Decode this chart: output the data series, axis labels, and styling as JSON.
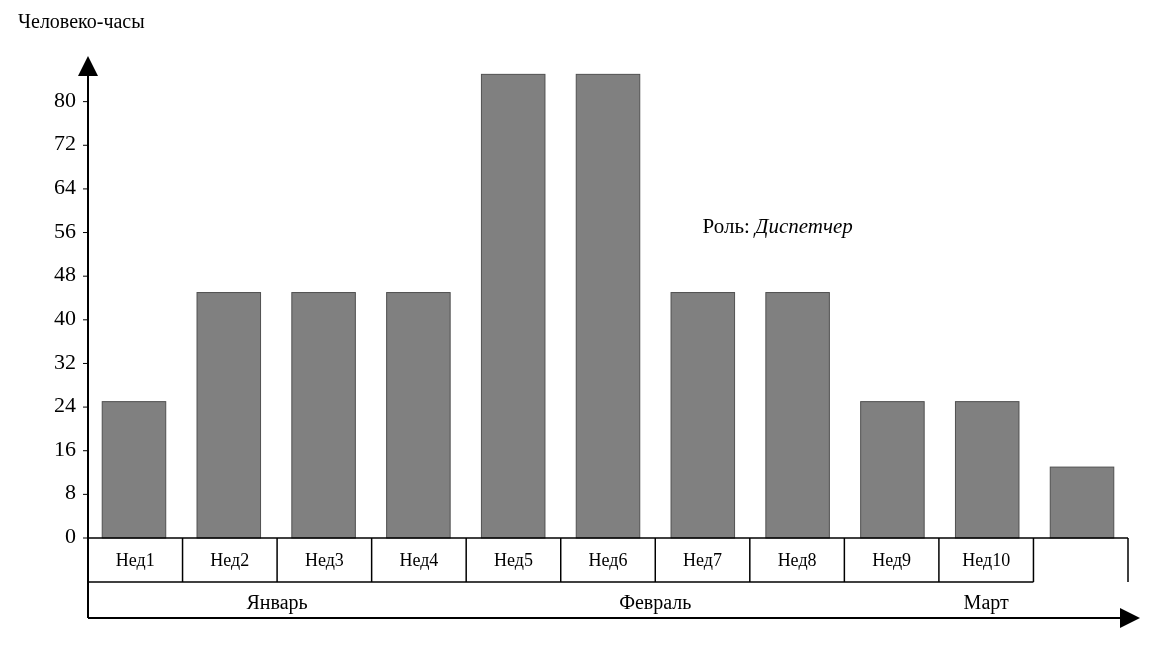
{
  "chart_data": {
    "type": "bar",
    "ylabel": "Человеко-часы",
    "categories": [
      "Нед1",
      "Нед2",
      "Нед3",
      "Нед4",
      "Нед5",
      "Нед6",
      "Нед7",
      "Нед8",
      "Нед9",
      "Нед10",
      null
    ],
    "values": [
      25,
      45,
      45,
      45,
      85,
      85,
      45,
      45,
      25,
      25,
      13
    ],
    "color": "#808080",
    "ylim": [
      0,
      88
    ],
    "yticks": [
      0,
      8,
      16,
      24,
      32,
      40,
      48,
      56,
      64,
      72,
      80
    ],
    "annotations": [
      "Январь",
      "Февраль",
      "Март",
      "Роль: Диспетчер"
    ]
  }
}
